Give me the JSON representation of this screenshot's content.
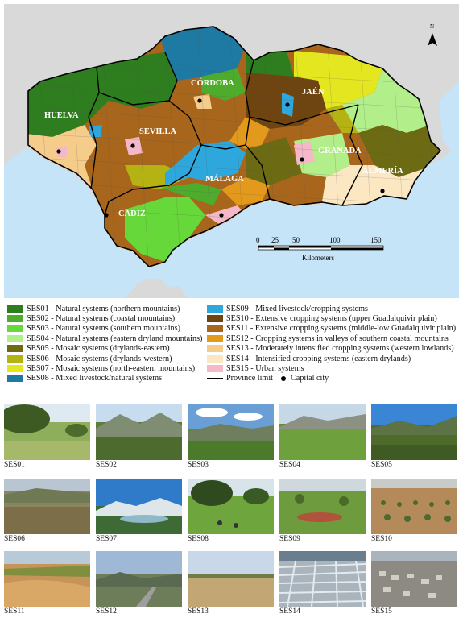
{
  "map": {
    "north_label": "N",
    "provinces": [
      {
        "name": "HUELVA"
      },
      {
        "name": "SEVILLA"
      },
      {
        "name": "CÓRDOBA"
      },
      {
        "name": "JAÉN"
      },
      {
        "name": "GRANADA"
      },
      {
        "name": "ALMERÍA"
      },
      {
        "name": "MÁLAGA"
      },
      {
        "name": "CÁDIZ"
      }
    ],
    "scale": {
      "ticks": [
        "0",
        "25",
        "50",
        "100",
        "150"
      ],
      "unit": "Kilometers"
    },
    "colors": {
      "sea": "#c6e4f7",
      "land": "#d9d9d9"
    }
  },
  "legend": {
    "left": [
      {
        "code": "SES01",
        "label": "SES01 - Natural systems (northern mountains)",
        "color": "#2e7d1f"
      },
      {
        "code": "SES02",
        "label": "SES02 - Natural systems (coastal mountains)",
        "color": "#4eac2c"
      },
      {
        "code": "SES03",
        "label": "SES03 - Natural systems (southern mountains)",
        "color": "#67d83a"
      },
      {
        "code": "SES04",
        "label": "SES04 - Natural systems (eastern dryland mountains)",
        "color": "#b2ee8a"
      },
      {
        "code": "SES05",
        "label": "SES05 - Mosaic systems (drylands-eastern)",
        "color": "#6d6a14"
      },
      {
        "code": "SES06",
        "label": "SES06 - Mosaic systems (drylands-western)",
        "color": "#b5b314"
      },
      {
        "code": "SES07",
        "label": "SES07 - Mosaic systems (north-eastern mountains)",
        "color": "#e4e620"
      },
      {
        "code": "SES08",
        "label": "SES08 - Mixed livestock/natural systems",
        "color": "#1e7aa3"
      }
    ],
    "right": [
      {
        "code": "SES09",
        "label": "SES09 - Mixed livestock/cropping systems",
        "color": "#2ea7dd"
      },
      {
        "code": "SES10",
        "label": "SES10 - Extensive cropping systems (upper Guadalquivir plain)",
        "color": "#6e4410"
      },
      {
        "code": "SES11",
        "label": "SES11 - Extensive cropping systems (middle-low Guadalquivir plain)",
        "color": "#a8651c"
      },
      {
        "code": "SES12",
        "label": "SES12 - Cropping systems in valleys of southern coastal mountains",
        "color": "#e39a1c"
      },
      {
        "code": "SES13",
        "label": "SES13 - Moderately intensified cropping systems (western lowlands)",
        "color": "#f5cc8a"
      },
      {
        "code": "SES14",
        "label": "SES14 - Intensified cropping systems (eastern drylands)",
        "color": "#fbe8c2"
      },
      {
        "code": "SES15",
        "label": "SES15 - Urban systems",
        "color": "#f5b8c8"
      }
    ],
    "province_limit": "Province limit",
    "capital_city": "Capital city"
  },
  "photos": [
    {
      "label": "SES01"
    },
    {
      "label": "SES02"
    },
    {
      "label": "SES03"
    },
    {
      "label": "SES04"
    },
    {
      "label": "SES05"
    },
    {
      "label": "SES06"
    },
    {
      "label": "SES07"
    },
    {
      "label": "SES08"
    },
    {
      "label": "SES09"
    },
    {
      "label": "SES10"
    },
    {
      "label": "SES11"
    },
    {
      "label": "SES12"
    },
    {
      "label": "SES13"
    },
    {
      "label": "SES14"
    },
    {
      "label": "SES15"
    }
  ]
}
